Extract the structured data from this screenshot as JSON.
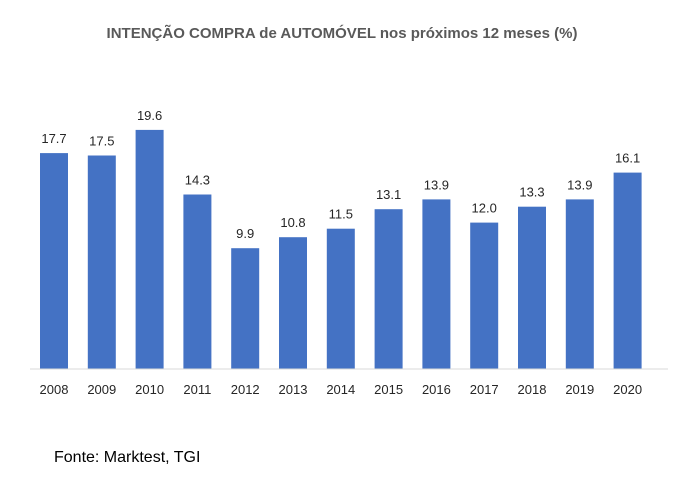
{
  "chart_data": {
    "type": "bar",
    "title": "INTENÇÃO COMPRA de AUTOMÓVEL nos próximos 12 meses (%)",
    "categories": [
      "2008",
      "2009",
      "2010",
      "2011",
      "2012",
      "2013",
      "2014",
      "2015",
      "2016",
      "2017",
      "2018",
      "2019",
      "2020"
    ],
    "values": [
      17.7,
      17.5,
      19.6,
      14.3,
      9.9,
      10.8,
      11.5,
      13.1,
      13.9,
      12.0,
      13.3,
      13.9,
      16.1
    ],
    "value_labels": [
      "17.7",
      "17.5",
      "19.6",
      "14.3",
      "9.9",
      "10.8",
      "11.5",
      "13.1",
      "13.9",
      "12.0",
      "13.3",
      "13.9",
      "16.1"
    ],
    "xlabel": "",
    "ylabel": "",
    "ylim": [
      0,
      20
    ],
    "grid": false,
    "bar_color": "#4472C4"
  },
  "source": "Fonte: Marktest, TGI"
}
